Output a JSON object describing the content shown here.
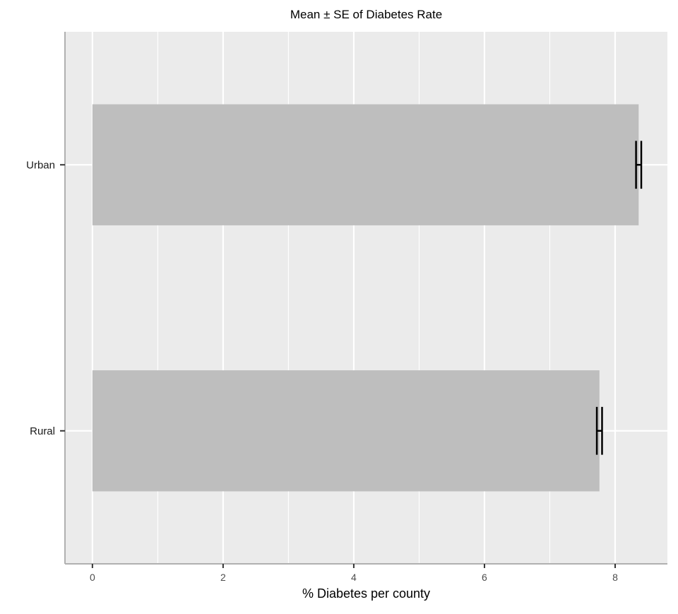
{
  "chart_data": {
    "type": "bar",
    "orientation": "horizontal",
    "title": "Mean ± SE of Diabetes Rate",
    "xlabel": "% Diabetes per county",
    "ylabel": "",
    "categories": [
      "Urban",
      "Rural"
    ],
    "values": [
      8.36,
      7.76
    ],
    "errors": [
      0.04,
      0.04
    ],
    "xlim": [
      -0.42,
      8.8
    ],
    "xticks": [
      0,
      2,
      4,
      6,
      8
    ],
    "xtick_labels": [
      "0",
      "2",
      "4",
      "6",
      "8"
    ],
    "grid": true,
    "colors": {
      "panel": "#ebebeb",
      "bar": "#bebebe",
      "grid": "#ffffff",
      "error_bar": "#000000",
      "axis_line": "#b0b0b0",
      "tick_text": "#4d4d4d"
    }
  }
}
